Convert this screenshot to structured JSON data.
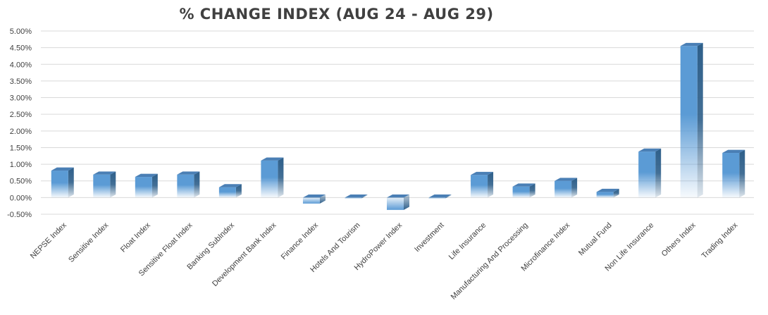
{
  "chart_data": {
    "type": "bar",
    "title": "% CHANGE INDEX (AUG 24 - AUG 29)",
    "xlabel": "",
    "ylabel": "",
    "ylim": [
      -0.005,
      0.05
    ],
    "ytick_labels": [
      "5.00%",
      "4.50%",
      "4.00%",
      "3.50%",
      "3.00%",
      "2.50%",
      "2.00%",
      "1.50%",
      "1.00%",
      "0.50%",
      "0.00%",
      "-0.50%"
    ],
    "grid": true,
    "legend": "none",
    "categories": [
      "NEPSE Index",
      "Sensitive Index",
      "Float Index",
      "Sensitive Float Index",
      "Banking SubIndex",
      "Development Bank Index",
      "Finance Index",
      "Hotels And Tourism",
      "HydroPower Index",
      "Investment",
      "Life Insurance",
      "Manufacturing And Processing",
      "Microfinance Index",
      "Mutual Fund",
      "Non Life Insurance",
      "Others Index",
      "Trading Index"
    ],
    "values": [
      0.0081,
      0.0069,
      0.0062,
      0.0069,
      0.0031,
      0.0111,
      -0.0018,
      -0.0002,
      -0.0037,
      -0.0002,
      0.0068,
      0.0033,
      0.005,
      0.0017,
      0.0138,
      0.0455,
      0.0134
    ],
    "colors": {
      "bar_front": "#5b9bd5",
      "bar_side": "#2e5f8a",
      "bar_top": "#4a7fb5",
      "grid": "#d9d9d9",
      "text": "#404040"
    }
  }
}
